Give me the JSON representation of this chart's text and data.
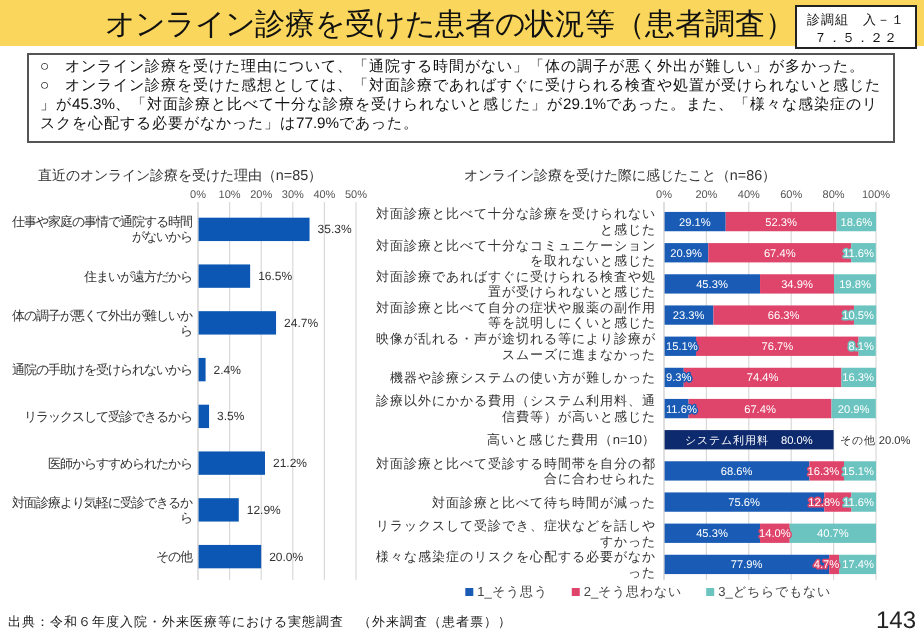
{
  "chart_data": [
    {
      "type": "other",
      "title": "オンライン診療を受けた患者の状況等（患者調査）",
      "annotations": [
        "診調組　入－１",
        "７．５．２２",
        "○　オンライン診療を受けた理由について、「通院する時間がない」「体の調子が悪く外出が難しい」が多かった。",
        "○　オンライン診療を受けた感想としては、「対面診療であればすぐに受けられる検査や処置が受けられないと感じた」が45.3%、「対面診療と比べて十分な診療を受けられないと感じた」が29.1%であった。また、「様々な感染症のリスクを心配する必要がなかった」は77.9%であった。",
        "出典：令和６年度入院・外来医療等における実態調査　（外来調査（患者票））",
        "143"
      ]
    },
    {
      "type": "bar",
      "orientation": "horizontal",
      "title": "直近のオンライン診療を受けた理由（n=85）",
      "categories": [
        "仕事や家庭の事情で通院する時間がないから",
        "住まいが遠方だから",
        "体の調子が悪くて外出が難しいから",
        "通院の手助けを受けられないから",
        "リラックスして受診できるから",
        "医師からすすめられたから",
        "対面診療より気軽に受診できるから",
        "その他"
      ],
      "values": [
        35.3,
        16.5,
        24.7,
        2.4,
        3.5,
        21.2,
        12.9,
        20.0
      ],
      "color": "#0b57b3",
      "value_labels": [
        "35.3%",
        "16.5%",
        "24.7%",
        "2.4%",
        "3.5%",
        "21.2%",
        "12.9%",
        "20.0%"
      ],
      "xlim": [
        0,
        50
      ],
      "xticks": [
        {
          "value": 0,
          "label": "0%"
        },
        {
          "value": 10,
          "label": "10%"
        },
        {
          "value": 20,
          "label": "20%"
        },
        {
          "value": 30,
          "label": "30%"
        },
        {
          "value": 40,
          "label": "40%"
        },
        {
          "value": 50,
          "label": "50%"
        }
      ],
      "grid": "x"
    },
    {
      "type": "bar",
      "orientation": "horizontal",
      "stacked": true,
      "title": "オンライン診療を受けた際に感じたこと（n=86）",
      "categories": [
        "対面診療と比べて十分な診療を受けられないと感じた",
        "対面診療と比べて十分なコミュニケーションを取れないと感じた",
        "対面診療であればすぐに受けられる検査や処置が受けられないと感じた",
        "対面診療と比べて自分の症状や服薬の副作用等を説明しにくいと感じた",
        "映像が乱れる・声が途切れる等により診療がスムーズに進まなかった",
        "機器や診療システムの使い方が難しかった",
        "診療以外にかかる費用（システム利用料、通信費等）が高いと感じた",
        "高いと感じた費用（n=10）",
        "対面診療と比べて受診する時間帯を自分の都合に合わせられた",
        "対面診療と比べて待ち時間が減った",
        "リラックスして受診でき、症状などを話しやすかった",
        "様々な感染症のリスクを心配する必要がなかった"
      ],
      "series": [
        {
          "name": "1_そう思う",
          "color": "#1a5cb5",
          "values": [
            29.1,
            20.9,
            45.3,
            23.3,
            15.1,
            9.3,
            11.6,
            null,
            68.6,
            75.6,
            45.3,
            77.9
          ],
          "value_labels": [
            "29.1%",
            "20.9%",
            "45.3%",
            "23.3%",
            "15.1%",
            "9.3%",
            "11.6%",
            null,
            "68.6%",
            "75.6%",
            "45.3%",
            "77.9%"
          ]
        },
        {
          "name": "2_そう思わない",
          "color": "#df456b",
          "values": [
            52.3,
            67.4,
            34.9,
            66.3,
            76.7,
            74.4,
            67.4,
            null,
            16.3,
            12.8,
            14.0,
            4.7
          ],
          "value_labels": [
            "52.3%",
            "67.4%",
            "34.9%",
            "66.3%",
            "76.7%",
            "74.4%",
            "67.4%",
            null,
            "16.3%",
            "12.8%",
            "14.0%",
            "4.7%"
          ]
        },
        {
          "name": "3_どちらでもない",
          "color": "#6cc4c0",
          "values": [
            18.6,
            11.6,
            19.8,
            10.5,
            8.1,
            16.3,
            20.9,
            null,
            15.1,
            11.6,
            40.7,
            17.4
          ],
          "value_labels": [
            "18.6%",
            "11.6%",
            "19.8%",
            "10.5%",
            "8.1%",
            "16.3%",
            "20.9%",
            null,
            "15.1%",
            "11.6%",
            "40.7%",
            "17.4%"
          ]
        },
        {
          "color": "#0e2a6e",
          "values": [
            null,
            null,
            null,
            null,
            null,
            null,
            null,
            80.0,
            null,
            null,
            null,
            null
          ],
          "value_labels": [
            null,
            null,
            null,
            null,
            null,
            null,
            null,
            "システム利用料　80.0%",
            null,
            null,
            null,
            null
          ]
        }
      ],
      "annotations": [
        {
          "text": "その他 20.0%",
          "x": 80.0,
          "y": "高いと感じた費用（n=10）"
        }
      ],
      "xlim": [
        0,
        100
      ],
      "xticks": [
        {
          "value": 0,
          "label": "0%"
        },
        {
          "value": 20,
          "label": "20%"
        },
        {
          "value": 40,
          "label": "40%"
        },
        {
          "value": 60,
          "label": "60%"
        },
        {
          "value": 80,
          "label": "80%"
        },
        {
          "value": 100,
          "label": "100%"
        }
      ],
      "grid": "x",
      "legend": "bottom"
    }
  ]
}
